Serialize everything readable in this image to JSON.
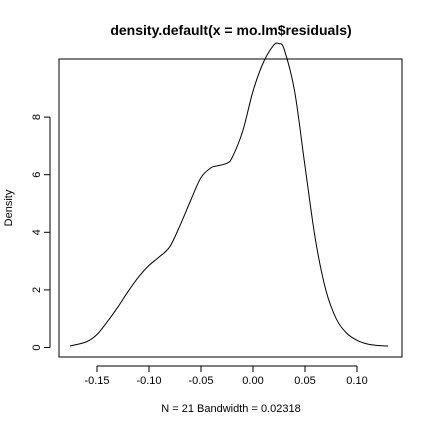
{
  "chart_data": {
    "type": "line",
    "title": "density.default(x = mo.lm$residuals)",
    "xlabel": "N = 21   Bandwidth = 0.02318",
    "ylabel": "Density",
    "xlim": [
      -0.176,
      0.13
    ],
    "ylim": [
      0,
      9.6
    ],
    "x_ticks": [
      -0.15,
      -0.1,
      -0.05,
      0.0,
      0.05,
      0.1
    ],
    "x_tick_labels": [
      "-0.15",
      "-0.10",
      "-0.05",
      "0.00",
      "0.05",
      "0.10"
    ],
    "y_ticks": [
      0,
      2,
      4,
      6,
      8
    ],
    "y_tick_labels": [
      "0",
      "2",
      "4",
      "6",
      "8"
    ],
    "grid": false,
    "series": [
      {
        "x": [
          -0.176,
          -0.16,
          -0.15,
          -0.14,
          -0.13,
          -0.12,
          -0.11,
          -0.1,
          -0.09,
          -0.08,
          -0.07,
          -0.06,
          -0.05,
          -0.04,
          -0.035,
          -0.025,
          -0.02,
          -0.01,
          0.0,
          0.01,
          0.02,
          0.025,
          0.03,
          0.04,
          0.05,
          0.06,
          0.07,
          0.08,
          0.09,
          0.1,
          0.11,
          0.12,
          0.13
        ],
        "y": [
          0.05,
          0.2,
          0.45,
          0.9,
          1.4,
          1.95,
          2.45,
          2.85,
          3.15,
          3.5,
          4.25,
          5.1,
          5.9,
          6.25,
          6.3,
          6.4,
          6.6,
          7.5,
          8.9,
          9.9,
          10.5,
          10.55,
          10.35,
          8.9,
          6.3,
          3.75,
          2.0,
          1.0,
          0.5,
          0.25,
          0.12,
          0.07,
          0.05
        ]
      }
    ]
  }
}
